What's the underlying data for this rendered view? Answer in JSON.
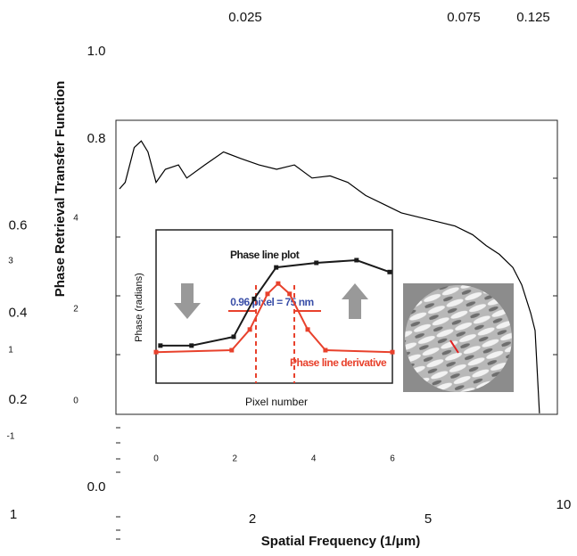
{
  "chart_data": [
    {
      "type": "line",
      "xlabel": "Spatial Frequency (1/μm)",
      "ylabel": "Phase Retrieval Transfer Function",
      "x": [
        1.0,
        1.03,
        1.08,
        1.12,
        1.16,
        1.21,
        1.27,
        1.36,
        1.42,
        1.56,
        1.72,
        1.88,
        2.07,
        2.27,
        2.49,
        2.73,
        3.0,
        3.29,
        3.61,
        3.96,
        4.35,
        4.77,
        5.24,
        5.75,
        6.31,
        6.77,
        7.25,
        7.78,
        8.15,
        8.54,
        8.74,
        8.94
      ],
      "values": [
        0.685,
        0.7,
        0.78,
        0.795,
        0.77,
        0.7,
        0.73,
        0.74,
        0.71,
        0.74,
        0.77,
        0.755,
        0.74,
        0.73,
        0.74,
        0.71,
        0.715,
        0.7,
        0.67,
        0.65,
        0.63,
        0.62,
        0.61,
        0.6,
        0.58,
        0.555,
        0.535,
        0.505,
        0.465,
        0.4,
        0.36,
        0.17
      ],
      "color": "#000000",
      "xscale": "log",
      "xlim": [
        1,
        10
      ],
      "ylim": [
        0,
        1
      ],
      "xticks": [
        1,
        2,
        5,
        10
      ],
      "x2ticks": [
        0.025,
        0.075,
        0.125
      ],
      "yticks": [
        {
          "value": 0,
          "label": "0.0"
        },
        0.2,
        0.4,
        0.6,
        0.8,
        {
          "value": 1,
          "label": "1.0"
        }
      ]
    },
    {
      "type": "line",
      "xlabel": "Pixel number",
      "ylabel": "Phase (radians)",
      "xlim": [
        0,
        6
      ],
      "ylim": [
        0,
        4
      ],
      "xticks": [
        0,
        2,
        4,
        6
      ],
      "yticks": [
        4,
        3,
        2,
        1,
        0,
        -1
      ],
      "series": [
        {
          "name": "Phase line plot",
          "color": "#1a1a1a",
          "x": [
            0.11,
            0.9,
            1.97,
            2.49,
            3.05,
            4.07,
            5.09,
            5.93
          ],
          "values": [
            0.98,
            0.98,
            1.21,
            2.2,
            3.02,
            3.14,
            3.21,
            2.9
          ]
        },
        {
          "name": "Phase line derivative",
          "color": "#e8412c",
          "x": [
            0,
            1.92,
            2.38,
            2.83,
            3.1,
            3.39,
            3.85,
            4.3,
            6
          ],
          "values": [
            0.81,
            0.86,
            1.4,
            2.33,
            2.6,
            2.33,
            1.4,
            0.86,
            0.81
          ]
        }
      ],
      "annotation": "0.96 pixel = 75 nm"
    }
  ]
}
